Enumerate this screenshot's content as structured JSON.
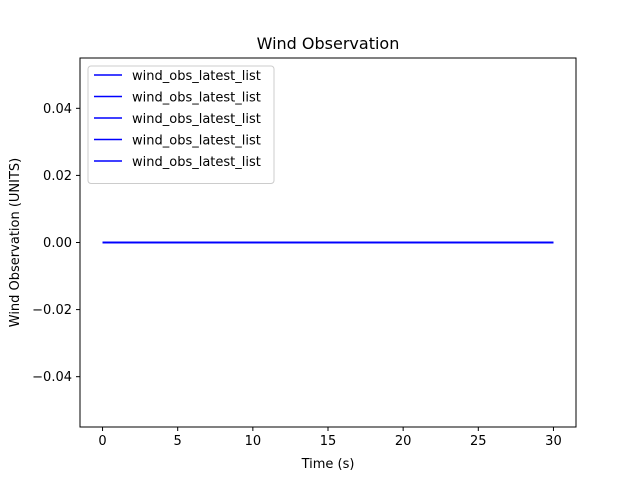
{
  "chart_data": {
    "type": "line",
    "title": "Wind Observation",
    "xlabel": "Time (s)",
    "ylabel": "Wind Observation (UNITS)",
    "xlim": [
      -1.5,
      31.5
    ],
    "ylim": [
      -0.055,
      0.055
    ],
    "xticks": [
      0,
      5,
      10,
      15,
      20,
      25,
      30
    ],
    "xtick_labels": [
      "0",
      "5",
      "10",
      "15",
      "20",
      "25",
      "30"
    ],
    "yticks": [
      -0.04,
      -0.02,
      0.0,
      0.02,
      0.04
    ],
    "ytick_labels": [
      "−0.04",
      "−0.02",
      "0.00",
      "0.02",
      "0.04"
    ],
    "grid": false,
    "legend_position": "top-left",
    "series": [
      {
        "name": "wind_obs_latest_list",
        "color": "#0000ff",
        "x": [
          0,
          30
        ],
        "y": [
          0,
          0
        ]
      },
      {
        "name": "wind_obs_latest_list",
        "color": "#0000ff",
        "x": [
          0,
          30
        ],
        "y": [
          0,
          0
        ]
      },
      {
        "name": "wind_obs_latest_list",
        "color": "#0000ff",
        "x": [
          0,
          30
        ],
        "y": [
          0,
          0
        ]
      },
      {
        "name": "wind_obs_latest_list",
        "color": "#0000ff",
        "x": [
          0,
          30
        ],
        "y": [
          0,
          0
        ]
      },
      {
        "name": "wind_obs_latest_list",
        "color": "#0000ff",
        "x": [
          0,
          30
        ],
        "y": [
          0,
          0
        ]
      }
    ]
  }
}
